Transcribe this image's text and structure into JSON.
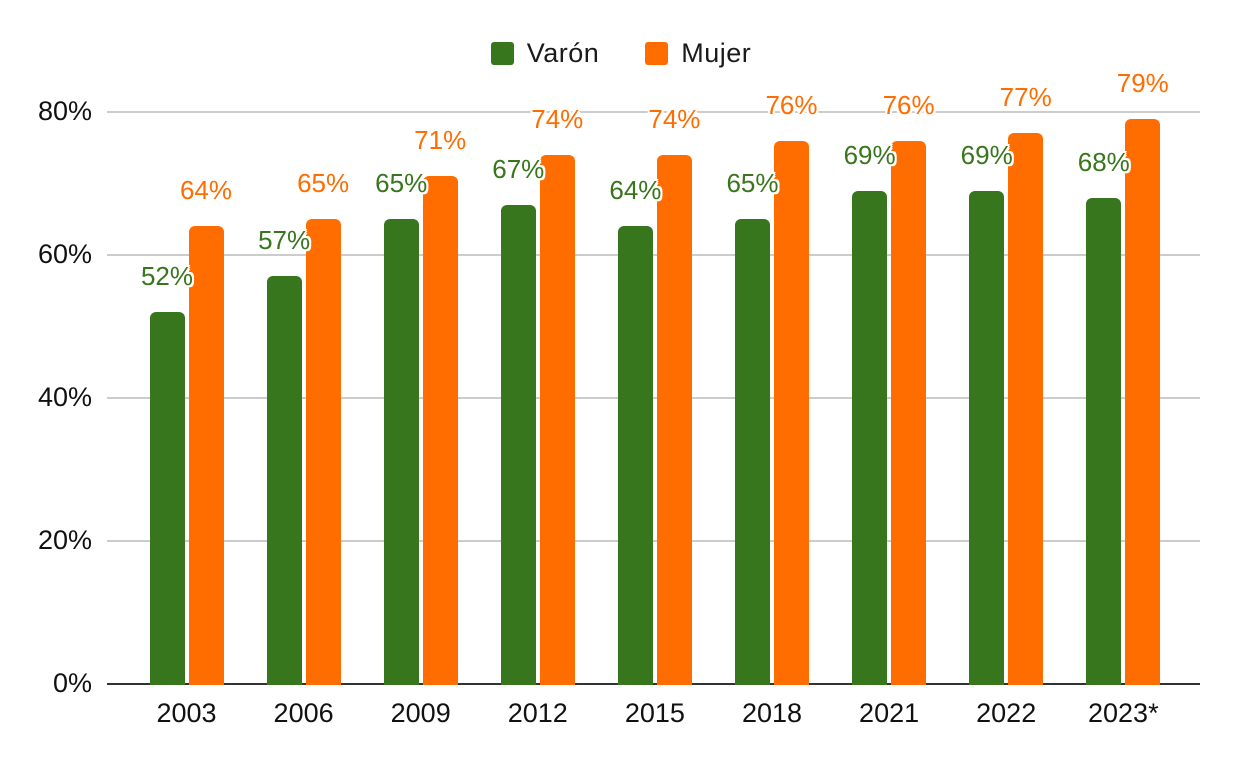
{
  "chart_data": {
    "type": "bar",
    "title": "",
    "xlabel": "",
    "ylabel": "",
    "categories": [
      "2003",
      "2006",
      "2009",
      "2012",
      "2015",
      "2018",
      "2021",
      "2022",
      "2023*"
    ],
    "series": [
      {
        "name": "Varón",
        "color": "#38761d",
        "values": [
          52,
          57,
          65,
          67,
          64,
          65,
          69,
          69,
          68
        ]
      },
      {
        "name": "Mujer",
        "color": "#ff6d01",
        "values": [
          64,
          65,
          71,
          74,
          74,
          76,
          76,
          77,
          79
        ]
      }
    ],
    "data_label_format": "{value}%",
    "ylim": [
      0,
      80
    ],
    "yticks": [
      0,
      20,
      40,
      60,
      80
    ],
    "ytick_format": "{value}%",
    "grid": "horizontal",
    "legend_position": "top-center",
    "colors": {
      "grid": "#cccccc",
      "axis_line": "#333333",
      "tick_text": "#111111",
      "legend_text": "#1a1a1a",
      "background": "#ffffff"
    }
  }
}
